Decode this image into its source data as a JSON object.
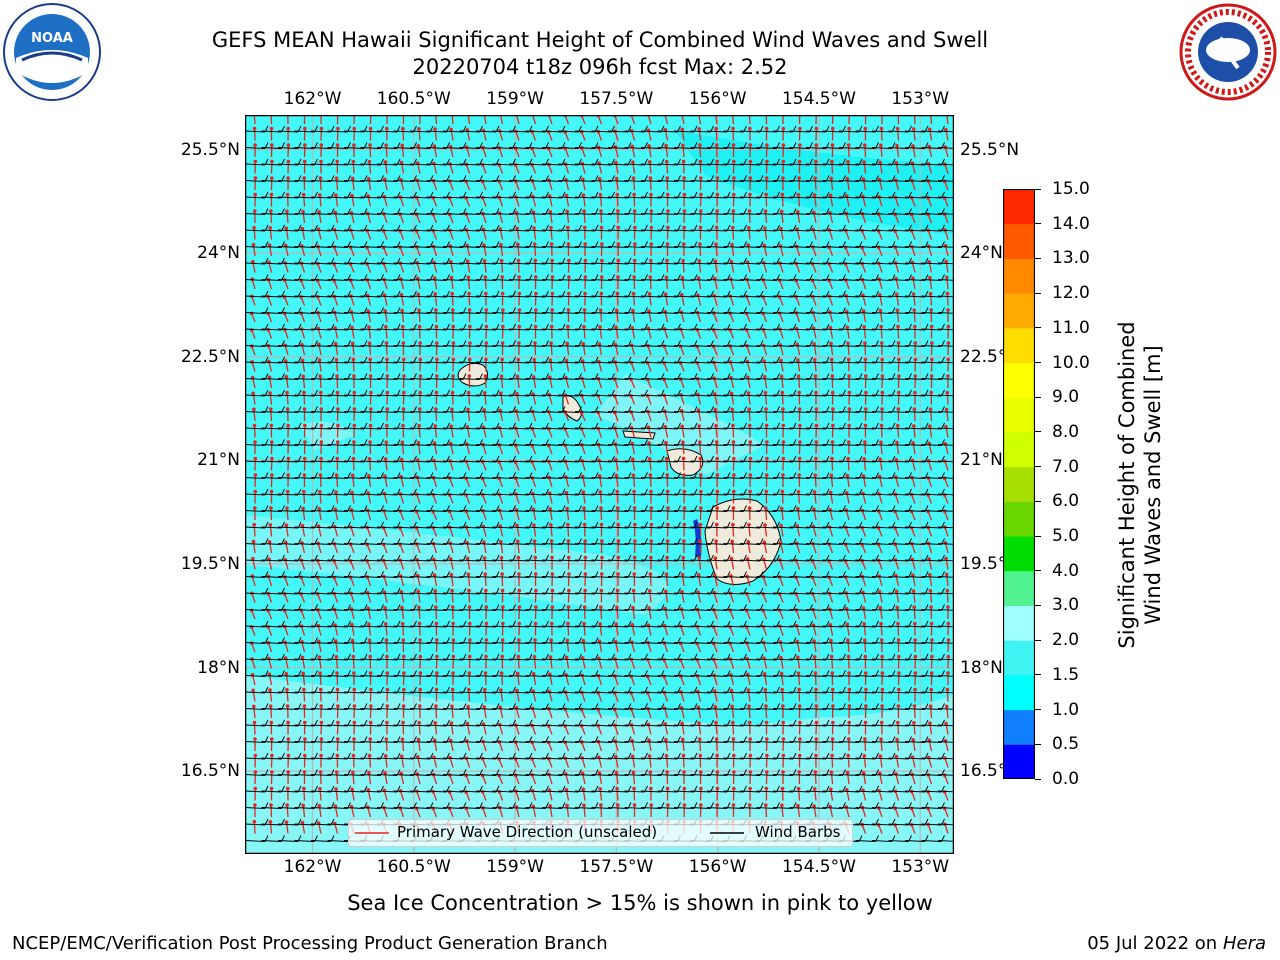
{
  "header": {
    "title_line1": "GEFS MEAN Hawaii Significant Height of Combined Wind Waves and Swell",
    "title_line2": "20220704 t18z 096h fcst   Max: 2.52"
  },
  "logos": {
    "left": {
      "name": "NOAA",
      "text": "NOAA"
    },
    "right": {
      "name": "National Weather Service"
    }
  },
  "map": {
    "lon_ticks": [
      "162°W",
      "160.5°W",
      "159°W",
      "157.5°W",
      "156°W",
      "154.5°W",
      "153°W"
    ],
    "lat_ticks": [
      "25.5°N",
      "24°N",
      "22.5°N",
      "21°N",
      "19.5°N",
      "18°N",
      "16.5°N"
    ],
    "lon_range": [
      -163,
      -152.5
    ],
    "lat_range": [
      15.3,
      26
    ],
    "ocean_colors": {
      "dark": "#1ef0f4",
      "mid": "#44f7f8",
      "light": "#9af4f6"
    },
    "land_color": "#eeeadc",
    "legend": {
      "wave_label": "Primary Wave Direction (unscaled)",
      "barb_label": "Wind Barbs",
      "wave_color": "#e8251d",
      "barb_color": "#000000"
    }
  },
  "colorbar": {
    "label_line1": "Significant Height of Combined",
    "label_line2": "Wind Waves and Swell [m]",
    "ticks": [
      "15.0",
      "14.0",
      "13.0",
      "12.0",
      "11.0",
      "10.0",
      "9.0",
      "8.0",
      "7.0",
      "6.0",
      "5.0",
      "4.0",
      "3.0",
      "2.0",
      "1.5",
      "1.0",
      "0.5",
      "0.0"
    ],
    "colors": [
      "#0000ff",
      "#0f7fff",
      "#00ffff",
      "#40f4f4",
      "#a0ffff",
      "#50f390",
      "#00dd00",
      "#6ad600",
      "#a7e000",
      "#cfff00",
      "#ebff00",
      "#ffff00",
      "#ffdd00",
      "#ffaa00",
      "#ff8a00",
      "#ff5a00",
      "#ff2800"
    ]
  },
  "footer": {
    "note": "Sea Ice Concentration > 15% is shown in pink to yellow",
    "left": "NCEP/EMC/Verification Post Processing Product Generation Branch",
    "right_date": "05 Jul 2022 on ",
    "right_machine": "Hera"
  }
}
